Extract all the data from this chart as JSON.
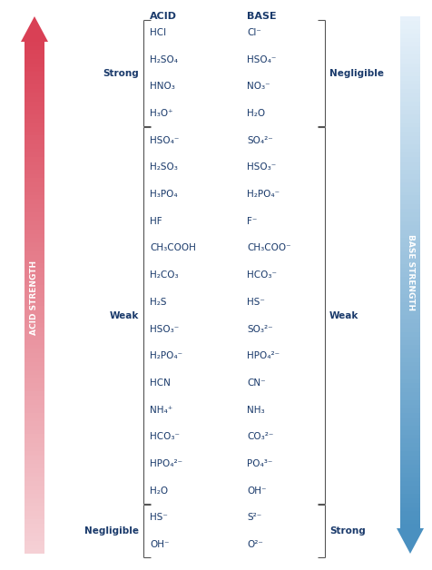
{
  "acids": [
    "HCl",
    "H₂SO₄",
    "HNO₃",
    "H₃O⁺",
    "HSO₄⁻",
    "H₂SO₃",
    "H₃PO₄",
    "HF",
    "CH₃COOH",
    "H₂CO₃",
    "H₂S",
    "HSO₃⁻",
    "H₂PO₄⁻",
    "HCN",
    "NH₄⁺",
    "HCO₃⁻",
    "HPO₄²⁻",
    "H₂O",
    "HS⁻",
    "OH⁻"
  ],
  "bases": [
    "Cl⁻",
    "HSO₄⁻",
    "NO₃⁻",
    "H₂O",
    "SO₄²⁻",
    "HSO₃⁻",
    "H₂PO₄⁻",
    "F⁻",
    "CH₃COO⁻",
    "HCO₃⁻",
    "HS⁻",
    "SO₃²⁻",
    "HPO₄²⁻",
    "CN⁻",
    "NH₃",
    "CO₃²⁻",
    "PO₄³⁻",
    "OH⁻",
    "S²⁻",
    "O²⁻"
  ],
  "background_color": "#ffffff",
  "text_color": "#1a3a6b",
  "title_acid": "ACID",
  "title_base": "BASE",
  "acid_strength_label": "ACID STRENGTH",
  "base_strength_label": "BASE STRENGTH",
  "acid_top_color": "#d94055",
  "acid_bot_color": "#f5d0d5",
  "base_top_color": "#e8f2fa",
  "base_bot_color": "#4a90c0",
  "bracket_color": "#555555",
  "label_bold_color": "#1a3a6b"
}
